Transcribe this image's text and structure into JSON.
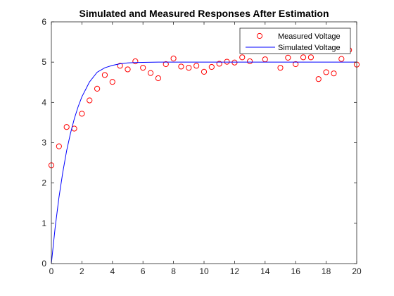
{
  "chart_data": {
    "type": "scatter",
    "title": "Simulated and Measured Responses After Estimation",
    "xlabel": "",
    "ylabel": "",
    "xlim": [
      0,
      20
    ],
    "ylim": [
      0,
      6
    ],
    "x_ticks": [
      0,
      2,
      4,
      6,
      8,
      10,
      12,
      14,
      16,
      18,
      20
    ],
    "y_ticks": [
      0,
      1,
      2,
      3,
      4,
      5,
      6
    ],
    "grid": false,
    "legend_position": "top-right",
    "series": [
      {
        "name": "Measured Voltage",
        "kind": "markers",
        "marker": "circle",
        "color": "#ff0000",
        "x": [
          0,
          0.5,
          1,
          1.5,
          2,
          2.5,
          3,
          3.5,
          4,
          4.5,
          5,
          5.5,
          6,
          6.5,
          7,
          7.5,
          8,
          8.5,
          9,
          9.5,
          10,
          10.5,
          11,
          11.5,
          12,
          12.5,
          13,
          14,
          15,
          15.5,
          16,
          16.5,
          17,
          17.5,
          18,
          18.5,
          19,
          19.5,
          20
        ],
        "y": [
          2.44,
          2.91,
          3.39,
          3.35,
          3.72,
          4.05,
          4.34,
          4.68,
          4.51,
          4.91,
          4.82,
          5.02,
          4.86,
          4.73,
          4.6,
          4.95,
          5.09,
          4.89,
          4.86,
          4.91,
          4.76,
          4.88,
          4.96,
          5.01,
          4.99,
          5.12,
          5.02,
          5.07,
          4.86,
          5.11,
          4.95,
          5.12,
          5.12,
          4.58,
          4.75,
          4.72,
          5.08,
          5.3,
          4.94
        ]
      },
      {
        "name": "Simulated Voltage",
        "kind": "line",
        "color": "#0000ff",
        "x": [
          0,
          0.25,
          0.5,
          0.75,
          1,
          1.25,
          1.5,
          1.75,
          2,
          2.5,
          3,
          3.5,
          4,
          4.5,
          5,
          5.5,
          6,
          7,
          8,
          9,
          10,
          12,
          14,
          16,
          18,
          20
        ],
        "y": [
          0,
          0.9,
          1.65,
          2.27,
          2.8,
          3.23,
          3.59,
          3.89,
          4.14,
          4.51,
          4.75,
          4.86,
          4.92,
          4.96,
          4.98,
          4.99,
          4.995,
          5.0,
          5.0,
          5.0,
          5.0,
          5.0,
          5.0,
          5.0,
          5.0,
          5.0
        ]
      }
    ]
  }
}
